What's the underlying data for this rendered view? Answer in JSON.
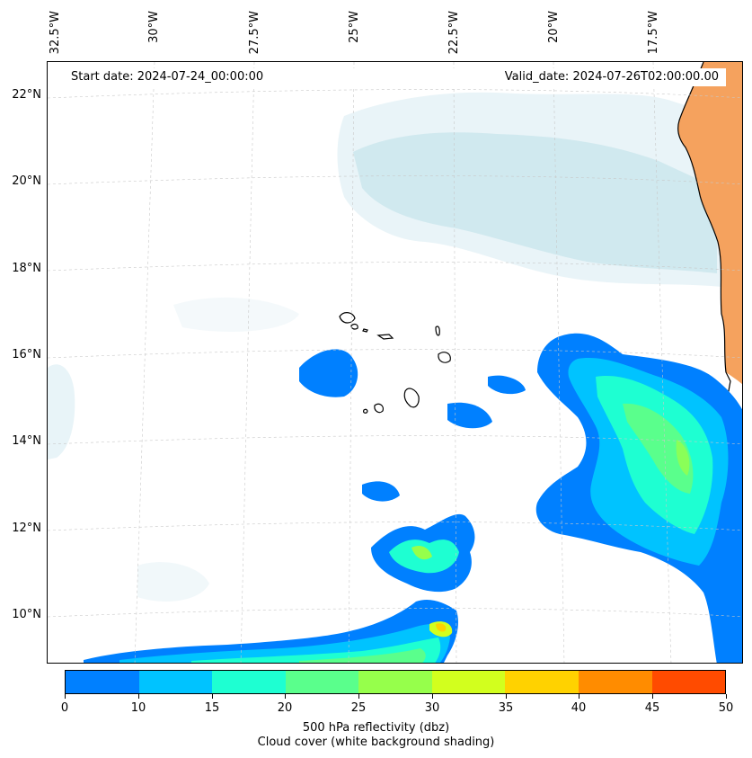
{
  "map": {
    "start_date": "Start date: 2024-07-24_00:00:00",
    "valid_date": "Valid_date: 2024-07-26T02:00:00.00",
    "lat_labels": [
      "22°N",
      "20°N",
      "18°N",
      "16°N",
      "14°N",
      "12°N",
      "10°N"
    ],
    "lon_labels": [
      "32.5°W",
      "30°W",
      "27.5°W",
      "25°W",
      "22.5°W",
      "20°W",
      "17.5°W"
    ],
    "colors": {
      "land": "#f5a25e",
      "cloud": "#cfe7ee",
      "coast": "#000000",
      "grid": "#c8c8c8"
    }
  },
  "colorbar": {
    "title": "500 hPa reflectivity (dbz)",
    "subtitle": "Cloud cover (white background shading)",
    "ticks": [
      "0",
      "10",
      "15",
      "20",
      "25",
      "30",
      "35",
      "40",
      "45",
      "50"
    ],
    "colors": [
      "#0080ff",
      "#00c3ff",
      "#1effd2",
      "#5aff8c",
      "#96ff4b",
      "#d2ff1e",
      "#ffd200",
      "#ff8c00",
      "#ff4b00"
    ]
  }
}
